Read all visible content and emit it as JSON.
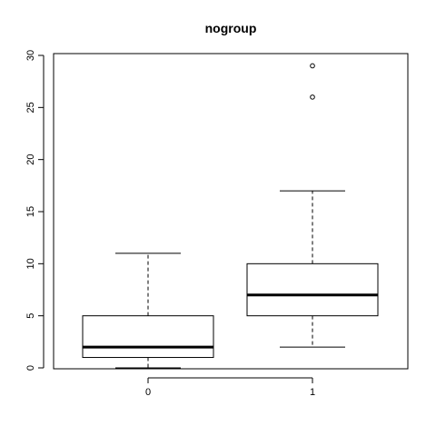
{
  "chart_data": {
    "type": "boxplot",
    "title": "nogroup",
    "xlabel": "",
    "ylabel": "",
    "categories": [
      "0",
      "1"
    ],
    "ylim": [
      0,
      30
    ],
    "yticks": [
      0,
      5,
      10,
      15,
      20,
      25,
      30
    ],
    "grid": false,
    "boxes": [
      {
        "category": "0",
        "whisker_low": 0,
        "q1": 1,
        "median": 2,
        "q3": 5,
        "whisker_high": 11,
        "outliers": []
      },
      {
        "category": "1",
        "whisker_low": 2,
        "q1": 5,
        "median": 7,
        "q3": 10,
        "whisker_high": 17,
        "outliers": [
          26,
          29
        ]
      }
    ]
  }
}
